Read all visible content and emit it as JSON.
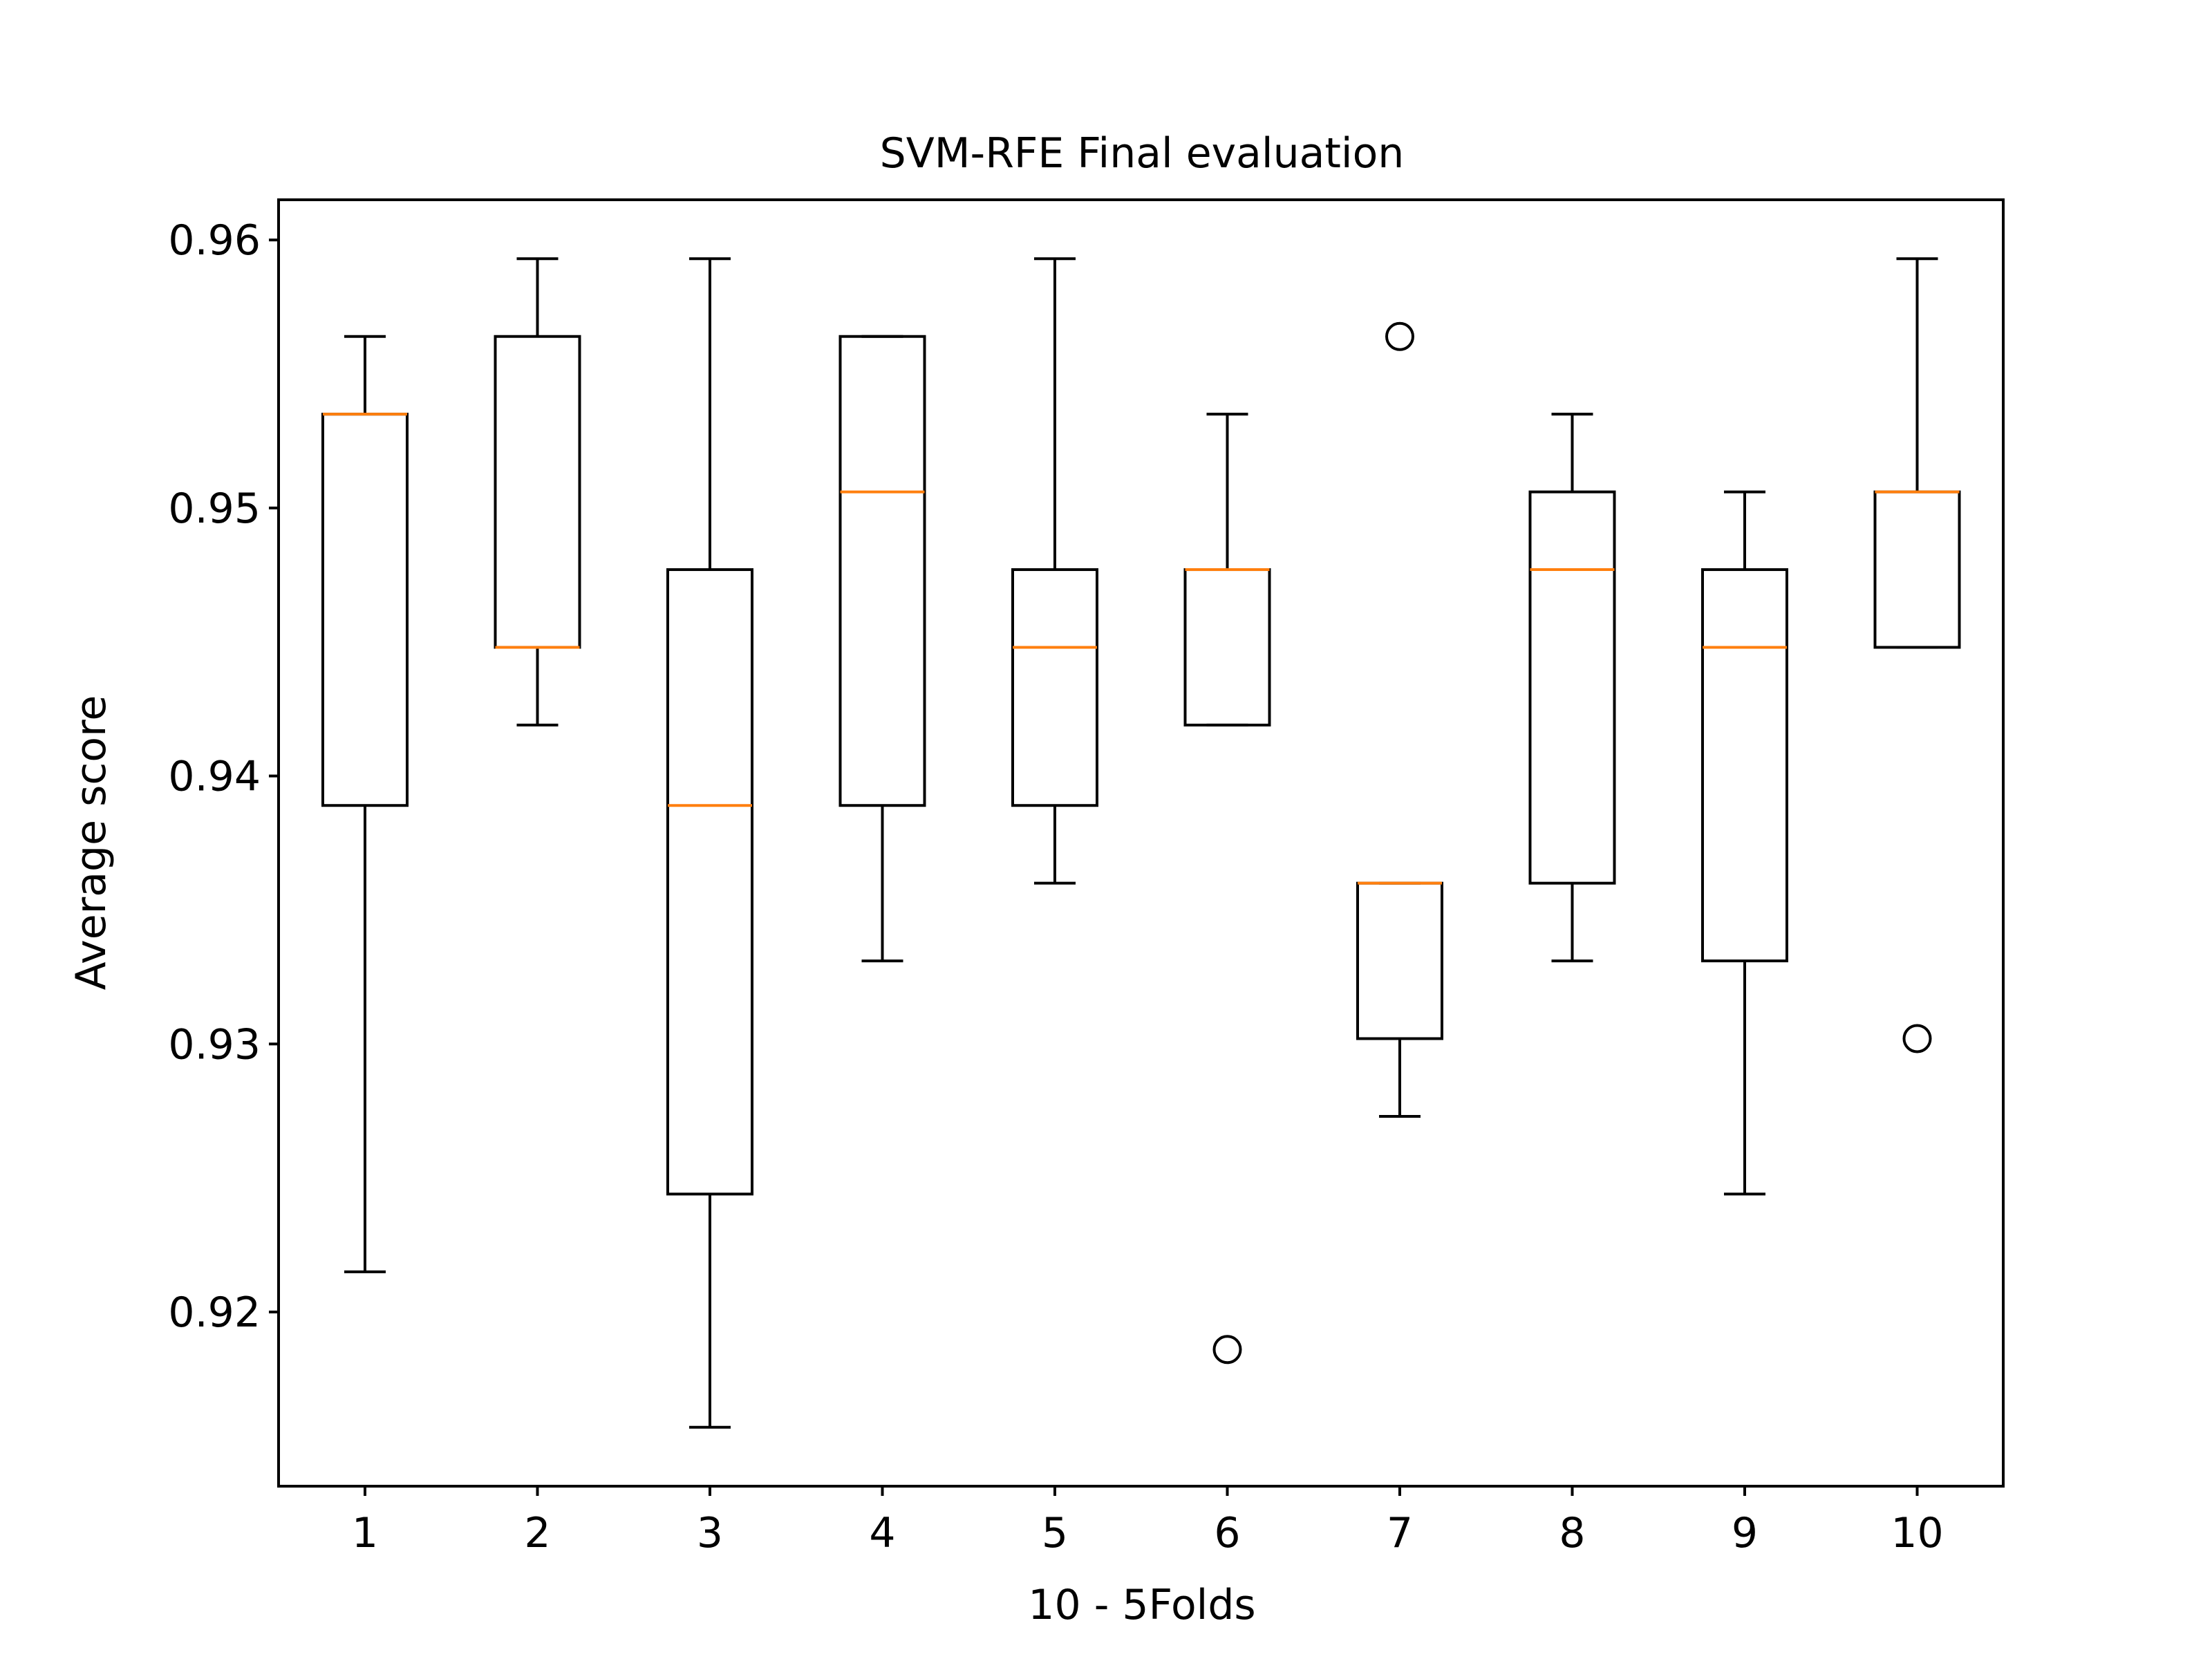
{
  "chart_data": {
    "type": "boxplot",
    "title": "SVM-RFE Final evaluation",
    "xlabel": "10 - 5Folds",
    "ylabel": "Average score",
    "categories": [
      "1",
      "2",
      "3",
      "4",
      "5",
      "6",
      "7",
      "8",
      "9",
      "10"
    ],
    "yticks": [
      "0.92",
      "0.93",
      "0.94",
      "0.95",
      "0.96"
    ],
    "ylim": [
      0.9135,
      0.9615
    ],
    "grid": false,
    "legend": "none",
    "box_color": "#000000",
    "median_color": "#ff7f0e",
    "boxes": [
      {
        "label": "1",
        "whislo": 0.9215,
        "q1": 0.9389,
        "med": 0.9535,
        "q3": 0.9535,
        "whishi": 0.9564,
        "fliers": []
      },
      {
        "label": "2",
        "whislo": 0.9419,
        "q1": 0.9448,
        "med": 0.9448,
        "q3": 0.9564,
        "whishi": 0.9593,
        "fliers": []
      },
      {
        "label": "3",
        "whislo": 0.9157,
        "q1": 0.9244,
        "med": 0.9389,
        "q3": 0.9477,
        "whishi": 0.9593,
        "fliers": []
      },
      {
        "label": "4",
        "whislo": 0.9331,
        "q1": 0.9389,
        "med": 0.9506,
        "q3": 0.9564,
        "whishi": 0.9564,
        "fliers": []
      },
      {
        "label": "5",
        "whislo": 0.936,
        "q1": 0.9389,
        "med": 0.9448,
        "q3": 0.9477,
        "whishi": 0.9593,
        "fliers": []
      },
      {
        "label": "6",
        "whislo": 0.9419,
        "q1": 0.9419,
        "med": 0.9477,
        "q3": 0.9477,
        "whishi": 0.9535,
        "fliers": [
          0.9186
        ]
      },
      {
        "label": "7",
        "whislo": 0.9273,
        "q1": 0.9302,
        "med": 0.936,
        "q3": 0.936,
        "whishi": 0.936,
        "fliers": [
          0.9564
        ]
      },
      {
        "label": "8",
        "whislo": 0.9331,
        "q1": 0.936,
        "med": 0.9477,
        "q3": 0.9506,
        "whishi": 0.9535,
        "fliers": []
      },
      {
        "label": "9",
        "whislo": 0.9244,
        "q1": 0.9331,
        "med": 0.9448,
        "q3": 0.9477,
        "whishi": 0.9506,
        "fliers": []
      },
      {
        "label": "10",
        "whislo": 0.9448,
        "q1": 0.9448,
        "med": 0.9506,
        "q3": 0.9506,
        "whishi": 0.9593,
        "fliers": [
          0.9302
        ]
      }
    ]
  }
}
